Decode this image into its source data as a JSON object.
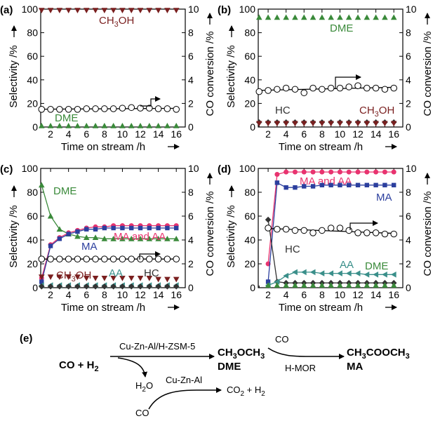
{
  "chart_data": [
    {
      "panel": "(a)",
      "type": "line",
      "xlabel": "Time on stream /h",
      "ylabel": "Selectivity /%",
      "y2label": "CO conversion /%",
      "xticks": [
        2,
        4,
        6,
        8,
        10,
        12,
        14,
        16
      ],
      "xlim": [
        0.9,
        17
      ],
      "ylim": [
        0,
        100
      ],
      "y2lim": [
        0,
        10
      ],
      "yticks": [
        0,
        20,
        40,
        60,
        80,
        100
      ],
      "y2ticks": [
        0,
        2,
        4,
        6,
        8,
        10
      ],
      "series": [
        {
          "label": "CH3OH",
          "label_main": "CH",
          "label_sub": "3",
          "label_tail": "OH",
          "color": "#7a1f1f",
          "marker": "triangle-down",
          "axis": "left",
          "x": [
            1,
            2,
            3,
            4,
            5,
            6,
            7,
            8,
            9,
            10,
            11,
            12,
            13,
            14,
            15,
            16
          ],
          "y": [
            99,
            99,
            99,
            99,
            99,
            99,
            99,
            99,
            99,
            99,
            99,
            99,
            99,
            99,
            99,
            99
          ]
        },
        {
          "label": "DME",
          "color": "#3a8a3a",
          "marker": "triangle-up",
          "axis": "left",
          "x": [
            1,
            2,
            3,
            4,
            5,
            6,
            7,
            8,
            9,
            10,
            11,
            12,
            13,
            14,
            15,
            16
          ],
          "y": [
            1,
            1,
            1,
            1,
            1,
            1,
            1,
            1,
            1,
            1,
            1,
            1,
            1,
            1,
            1,
            1
          ]
        },
        {
          "label": "",
          "color": "#000000",
          "marker": "circle-open",
          "axis": "right",
          "line": true,
          "x": [
            1,
            2,
            3,
            4,
            5,
            6,
            7,
            8,
            9,
            10,
            11,
            12,
            13,
            14,
            15,
            16
          ],
          "y": [
            1.5,
            1.5,
            1.5,
            1.5,
            1.5,
            1.55,
            1.55,
            1.55,
            1.55,
            1.6,
            1.65,
            1.6,
            1.6,
            1.55,
            1.55,
            1.5
          ]
        }
      ]
    },
    {
      "panel": "(b)",
      "type": "line",
      "xlabel": "Time on stream /h",
      "ylabel": "Selectivity /%",
      "y2label": "CO conversion /%",
      "xticks": [
        2,
        4,
        6,
        8,
        10,
        12,
        14,
        16
      ],
      "xlim": [
        0.9,
        17
      ],
      "ylim": [
        0,
        100
      ],
      "y2lim": [
        0,
        10
      ],
      "yticks": [
        0,
        20,
        40,
        60,
        80,
        100
      ],
      "y2ticks": [
        0,
        2,
        4,
        6,
        8,
        10
      ],
      "series": [
        {
          "label": "DME",
          "color": "#3a8a3a",
          "marker": "triangle-up",
          "axis": "left",
          "x": [
            1,
            2,
            3,
            4,
            5,
            6,
            7,
            8,
            9,
            10,
            11,
            12,
            13,
            14,
            15,
            16
          ],
          "y": [
            93,
            93,
            93,
            93,
            93,
            93,
            93,
            93,
            93,
            93,
            93,
            93,
            93,
            93,
            93,
            93
          ]
        },
        {
          "label": "HC",
          "color": "#333333",
          "marker": "diamond",
          "axis": "left",
          "x": [
            1,
            2,
            3,
            4,
            5,
            6,
            7,
            8,
            9,
            10,
            11,
            12,
            13,
            14,
            15,
            16
          ],
          "y": [
            4,
            4,
            4,
            4,
            4,
            4,
            4,
            4,
            4,
            4,
            4,
            4,
            4,
            4,
            4,
            4
          ]
        },
        {
          "label": "CH3OH",
          "label_main": "CH",
          "label_sub": "3",
          "label_tail": "OH",
          "color": "#7a1f1f",
          "marker": "triangle-down",
          "axis": "left",
          "x": [
            1,
            2,
            3,
            4,
            5,
            6,
            7,
            8,
            9,
            10,
            11,
            12,
            13,
            14,
            15,
            16
          ],
          "y": [
            3,
            3,
            3,
            3,
            3,
            3,
            3,
            3,
            3,
            3,
            3,
            3,
            3,
            3,
            3,
            3
          ]
        },
        {
          "label": "",
          "color": "#000000",
          "marker": "circle-open",
          "axis": "right",
          "line": true,
          "x": [
            1,
            2,
            3,
            4,
            5,
            6,
            7,
            8,
            9,
            10,
            11,
            12,
            13,
            14,
            15,
            16
          ],
          "y": [
            3.0,
            3.1,
            3.2,
            3.3,
            3.2,
            2.9,
            3.3,
            3.2,
            3.3,
            3.3,
            3.4,
            3.5,
            3.3,
            3.3,
            3.2,
            3.3
          ]
        }
      ]
    },
    {
      "panel": "(c)",
      "type": "line",
      "xlabel": "Time on stream /h",
      "ylabel": "Selectivity /%",
      "y2label": "CO conversion /%",
      "xticks": [
        2,
        4,
        6,
        8,
        10,
        12,
        14,
        16
      ],
      "xlim": [
        0.9,
        17
      ],
      "ylim": [
        0,
        100
      ],
      "y2lim": [
        0,
        10
      ],
      "yticks": [
        0,
        20,
        40,
        60,
        80,
        100
      ],
      "y2ticks": [
        0,
        2,
        4,
        6,
        8,
        10
      ],
      "series": [
        {
          "label": "DME",
          "color": "#3a8a3a",
          "marker": "triangle-up",
          "axis": "left",
          "line": true,
          "x": [
            1,
            2,
            3,
            4,
            5,
            6,
            7,
            8,
            9,
            10,
            11,
            12,
            13,
            14,
            15,
            16
          ],
          "y": [
            86,
            60,
            49,
            45,
            43,
            42,
            42,
            41,
            41,
            41,
            41,
            41,
            41,
            41,
            41,
            41
          ]
        },
        {
          "label": "MA and AA",
          "color": "#e8336f",
          "marker": "circle",
          "axis": "left",
          "line": true,
          "x": [
            1,
            2,
            3,
            4,
            5,
            6,
            7,
            8,
            9,
            10,
            11,
            12,
            13,
            14,
            15,
            16
          ],
          "y": [
            8,
            36,
            42,
            46,
            48,
            50,
            51,
            51,
            52,
            52,
            52,
            52,
            52,
            52,
            52,
            52
          ]
        },
        {
          "label": "MA",
          "color": "#2c3f9e",
          "marker": "square",
          "axis": "left",
          "line": true,
          "x": [
            1,
            2,
            3,
            4,
            5,
            6,
            7,
            8,
            9,
            10,
            11,
            12,
            13,
            14,
            15,
            16
          ],
          "y": [
            5,
            35,
            41,
            45,
            47,
            49,
            49,
            50,
            50,
            50,
            50,
            50,
            50,
            50,
            50,
            50
          ]
        },
        {
          "label": "CH3OH",
          "label_main": "CH",
          "label_sub": "3",
          "label_tail": "OH",
          "color": "#7a1f1f",
          "marker": "triangle-down",
          "axis": "left",
          "x": [
            1,
            2,
            3,
            4,
            5,
            6,
            7,
            8,
            9,
            10,
            11,
            12,
            13,
            14,
            15,
            16
          ],
          "y": [
            9,
            9,
            9,
            9,
            9,
            8,
            8,
            8,
            8,
            8,
            8,
            8,
            8,
            7,
            7,
            7
          ]
        },
        {
          "label": "AA",
          "color": "#3a8f8a",
          "marker": "triangle-left",
          "axis": "left",
          "x": [
            1,
            2,
            3,
            4,
            5,
            6,
            7,
            8,
            9,
            10,
            11,
            12,
            13,
            14,
            15,
            16
          ],
          "y": [
            2,
            2,
            2,
            2,
            2,
            2,
            2,
            2,
            2,
            2,
            2,
            2,
            2,
            2,
            2,
            2
          ]
        },
        {
          "label": "HC",
          "color": "#333333",
          "marker": "diamond",
          "axis": "left",
          "x": [
            1,
            2,
            3,
            4,
            5,
            6,
            7,
            8,
            9,
            10,
            11,
            12,
            13,
            14,
            15,
            16
          ],
          "y": [
            1,
            1,
            1,
            1,
            1,
            1,
            1,
            1,
            1,
            1,
            1,
            1,
            1,
            1,
            1,
            1
          ]
        },
        {
          "label": "",
          "color": "#000000",
          "marker": "circle-open",
          "axis": "right",
          "line": true,
          "x": [
            1,
            2,
            3,
            4,
            5,
            6,
            7,
            8,
            9,
            10,
            11,
            12,
            13,
            14,
            15,
            16
          ],
          "y": [
            2.4,
            2.4,
            2.4,
            2.4,
            2.4,
            2.4,
            2.4,
            2.4,
            2.4,
            2.4,
            2.4,
            2.4,
            2.4,
            2.4,
            2.4,
            2.4
          ]
        }
      ]
    },
    {
      "panel": "(d)",
      "type": "line",
      "xlabel": "Time on stream /h",
      "ylabel": "Selectivity /%",
      "y2label": "CO conversion /%",
      "xticks": [
        2,
        4,
        6,
        8,
        10,
        12,
        14,
        16
      ],
      "xlim": [
        0.9,
        17
      ],
      "ylim": [
        0,
        100
      ],
      "y2lim": [
        0,
        10
      ],
      "yticks": [
        0,
        20,
        40,
        60,
        80,
        100
      ],
      "y2ticks": [
        0,
        2,
        4,
        6,
        8,
        10
      ],
      "series": [
        {
          "label": "MA and AA",
          "color": "#e8336f",
          "marker": "circle",
          "axis": "left",
          "line": true,
          "x": [
            2,
            3,
            4,
            5,
            6,
            7,
            8,
            9,
            10,
            11,
            12,
            13,
            14,
            15,
            16
          ],
          "y": [
            20,
            95,
            97,
            97,
            97,
            97,
            97,
            97,
            97,
            97,
            97,
            97,
            97,
            97,
            97
          ]
        },
        {
          "label": "MA",
          "color": "#2c3f9e",
          "marker": "square",
          "axis": "left",
          "line": true,
          "x": [
            2,
            3,
            4,
            5,
            6,
            7,
            8,
            9,
            10,
            11,
            12,
            13,
            14,
            15,
            16
          ],
          "y": [
            5,
            88,
            84,
            84,
            85,
            85,
            86,
            86,
            86,
            86,
            86,
            86,
            86,
            86,
            86
          ]
        },
        {
          "label": "HC",
          "color": "#333333",
          "marker": "diamond",
          "axis": "left",
          "line": true,
          "x": [
            2,
            3,
            4,
            5,
            6,
            7,
            8,
            9,
            10,
            11,
            12,
            13,
            14,
            15,
            16
          ],
          "y": [
            57,
            5,
            4,
            4,
            4,
            4,
            4,
            4,
            4,
            4,
            4,
            4,
            4,
            4,
            4
          ]
        },
        {
          "label": "AA",
          "color": "#3a8f8a",
          "marker": "triangle-left",
          "axis": "left",
          "line": true,
          "x": [
            2,
            3,
            4,
            5,
            6,
            7,
            8,
            9,
            10,
            11,
            12,
            13,
            14,
            15,
            16
          ],
          "y": [
            2,
            5,
            10,
            13,
            13,
            13,
            12,
            12,
            12,
            12,
            12,
            11,
            11,
            11,
            11
          ]
        },
        {
          "label": "DME",
          "color": "#3a8a3a",
          "marker": "triangle-up",
          "axis": "left",
          "x": [
            2,
            3,
            4,
            5,
            6,
            7,
            8,
            9,
            10,
            11,
            12,
            13,
            14,
            15,
            16
          ],
          "y": [
            2,
            2,
            2,
            2,
            2,
            2,
            2,
            2,
            2,
            2,
            2,
            2,
            2,
            2,
            2
          ]
        },
        {
          "label": "",
          "color": "#000000",
          "marker": "circle-open",
          "axis": "right",
          "line": true,
          "x": [
            2,
            3,
            4,
            5,
            6,
            7,
            8,
            9,
            10,
            11,
            12,
            13,
            14,
            15,
            16
          ],
          "y": [
            5.0,
            4.9,
            4.9,
            4.8,
            4.8,
            4.6,
            4.8,
            5.0,
            5.0,
            4.8,
            4.6,
            4.6,
            4.6,
            4.5,
            4.5
          ]
        }
      ]
    }
  ],
  "scheme": {
    "panel": "(e)",
    "reactant": "CO + H",
    "reactant_sub": "2",
    "catalyst1": "Cu-Zn-Al/H-ZSM-5",
    "product1_formula": "CH",
    "product1_sub1": "3",
    "product1_mid": "OCH",
    "product1_sub2": "3",
    "product1_name": "DME",
    "co_label": "CO",
    "catalyst2": "H-MOR",
    "product2_formula": "CH",
    "product2_sub1": "3",
    "product2_mid": "COOCH",
    "product2_sub2": "3",
    "product2_name": "MA",
    "water": "H",
    "water_sub": "2",
    "water_tail": "O",
    "catalyst3": "Cu-Zn-Al",
    "co_label2": "CO",
    "shift_product": "CO",
    "shift_sub": "2",
    "shift_mid": " + H",
    "shift_sub2": "2"
  }
}
